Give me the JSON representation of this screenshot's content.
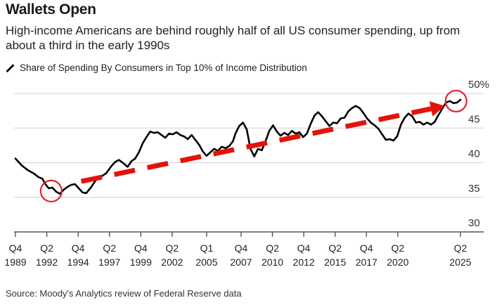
{
  "header": {
    "title": "Wallets Open",
    "subtitle": "High-income Americans are behind roughly half of all US consumer spending, up from about a third in the early 1990s",
    "legend_label": "Share of Spending By Consumers in Top 10% of Income Distribution"
  },
  "footer": {
    "source": "Source: Moody's Analytics review of Federal Reserve data"
  },
  "chart_data": {
    "type": "line",
    "title": "Wallets Open",
    "subtitle": "High-income Americans are behind roughly half of all US consumer spending, up from about a third in the early 1990s",
    "xlabel": "",
    "ylabel": "",
    "ylim": [
      30,
      50
    ],
    "xlim": [
      1989.75,
      2025.5
    ],
    "grid": true,
    "legend": "top-left",
    "y_ticks": [
      30,
      35,
      40,
      45,
      50
    ],
    "y_tick_labels": [
      "30",
      "35",
      "40",
      "45",
      "50%"
    ],
    "x_ticks": [
      {
        "value": 1989.75,
        "q": "Q4",
        "year": "1989"
      },
      {
        "value": 1992.25,
        "q": "Q2",
        "year": "1992"
      },
      {
        "value": 1994.75,
        "q": "Q4",
        "year": "1994"
      },
      {
        "value": 1997.25,
        "q": "Q2",
        "year": "1997"
      },
      {
        "value": 1999.75,
        "q": "Q4",
        "year": "1999"
      },
      {
        "value": 2002.25,
        "q": "Q2",
        "year": "2002"
      },
      {
        "value": 2005.0,
        "q": "Q1",
        "year": "2005"
      },
      {
        "value": 2007.75,
        "q": "Q4",
        "year": "2007"
      },
      {
        "value": 2010.25,
        "q": "Q2",
        "year": "2010"
      },
      {
        "value": 2012.75,
        "q": "Q4",
        "year": "2012"
      },
      {
        "value": 2015.25,
        "q": "Q2",
        "year": "2015"
      },
      {
        "value": 2017.75,
        "q": "Q4",
        "year": "2017"
      },
      {
        "value": 2020.25,
        "q": "Q2",
        "year": "2020"
      },
      {
        "value": 2025.25,
        "q": "Q2",
        "year": "2025"
      }
    ],
    "series": [
      {
        "name": "Share of Spending By Consumers in Top 10% of Income Distribution",
        "color": "#000000",
        "x": [
          1989.75,
          1990.25,
          1990.75,
          1991.25,
          1991.6,
          1991.9,
          1992.1,
          1992.4,
          1992.7,
          1993.0,
          1993.3,
          1993.6,
          1993.9,
          1994.2,
          1994.5,
          1994.8,
          1995.1,
          1995.4,
          1995.8,
          1996.2,
          1996.6,
          1997.0,
          1997.4,
          1997.7,
          1998.0,
          1998.3,
          1998.7,
          1999.0,
          1999.3,
          1999.6,
          1999.9,
          2000.2,
          2000.5,
          2000.8,
          2001.1,
          2001.4,
          2001.7,
          2002.0,
          2002.3,
          2002.6,
          2002.9,
          2003.2,
          2003.5,
          2003.8,
          2004.1,
          2004.4,
          2004.7,
          2005.0,
          2005.3,
          2005.6,
          2005.9,
          2006.2,
          2006.5,
          2006.8,
          2007.1,
          2007.3,
          2007.6,
          2007.9,
          2008.2,
          2008.5,
          2008.8,
          2009.1,
          2009.4,
          2009.7,
          2010.0,
          2010.3,
          2010.6,
          2010.9,
          2011.2,
          2011.5,
          2011.8,
          2012.1,
          2012.4,
          2012.7,
          2013.0,
          2013.3,
          2013.6,
          2013.9,
          2014.2,
          2014.5,
          2014.8,
          2015.1,
          2015.4,
          2015.7,
          2016.0,
          2016.3,
          2016.6,
          2016.9,
          2017.2,
          2017.5,
          2017.8,
          2018.1,
          2018.4,
          2018.7,
          2019.0,
          2019.3,
          2019.6,
          2019.9,
          2020.2,
          2020.5,
          2020.8,
          2021.1,
          2021.4,
          2021.7,
          2022.0,
          2022.3,
          2022.6,
          2022.9,
          2023.2,
          2023.5,
          2023.8,
          2024.1,
          2024.4,
          2024.7,
          2025.0,
          2025.25
        ],
        "values": [
          40.6,
          39.6,
          38.9,
          38.4,
          37.9,
          37.7,
          37.0,
          36.3,
          36.4,
          35.8,
          35.5,
          36.1,
          36.5,
          36.8,
          36.9,
          36.3,
          35.7,
          35.6,
          36.5,
          37.6,
          38.0,
          38.5,
          39.5,
          40.1,
          40.4,
          40.0,
          39.4,
          40.2,
          40.6,
          41.5,
          42.8,
          43.7,
          44.5,
          44.3,
          44.4,
          44.0,
          43.6,
          44.2,
          44.1,
          44.4,
          44.0,
          43.8,
          43.4,
          44.0,
          43.3,
          42.6,
          41.6,
          41.0,
          41.5,
          42.0,
          41.7,
          42.3,
          42.1,
          42.4,
          43.1,
          44.2,
          45.3,
          45.8,
          44.8,
          42.0,
          40.9,
          42.0,
          41.8,
          43.1,
          44.6,
          45.4,
          44.5,
          43.9,
          44.3,
          44.0,
          44.6,
          44.2,
          44.4,
          43.7,
          44.2,
          45.6,
          46.8,
          47.3,
          46.7,
          46.0,
          45.3,
          45.8,
          45.7,
          46.4,
          46.5,
          47.4,
          47.9,
          48.2,
          47.9,
          47.2,
          46.4,
          45.8,
          45.4,
          44.9,
          44.1,
          43.3,
          43.4,
          43.2,
          43.8,
          45.5,
          46.5,
          47.1,
          46.7,
          45.8,
          45.9,
          45.5,
          45.8,
          45.5,
          45.9,
          46.9,
          47.8,
          48.7,
          48.9,
          48.6,
          48.7,
          49.1
        ],
        "annotations": [
          {
            "type": "circle",
            "color": "#d9272e",
            "label": "1992 low",
            "x": 1992.6,
            "y": 35.9
          },
          {
            "type": "circle",
            "color": "#d9272e",
            "label": "2025 high",
            "x": 2024.9,
            "y": 48.9
          },
          {
            "type": "dashed-trend-arrow",
            "color": "#e3120b",
            "from": [
              1995.0,
              37.3
            ],
            "to": [
              2024.0,
              48.2
            ]
          }
        ]
      }
    ]
  }
}
